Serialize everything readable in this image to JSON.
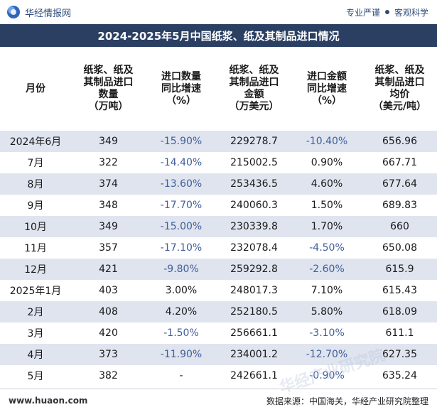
{
  "header": {
    "brand": "华经情报网",
    "slogan_left": "专业严谨",
    "slogan_right": "客观科学"
  },
  "title": "2024-2025年5月中国纸浆、纸及其制品进口情况",
  "table": {
    "columns": [
      "月份",
      "纸浆、纸及\n其制品进口\n数量\n（万吨）",
      "进口数量\n同比增速\n（%）",
      "纸浆、纸及\n其制品进口\n金额\n（万美元）",
      "进口金额\n同比增速\n（%）",
      "纸浆、纸及\n其制品进口\n均价\n（美元/吨）"
    ],
    "rows": [
      [
        "2024年6月",
        "349",
        "-15.90%",
        "229278.7",
        "-10.40%",
        "656.96"
      ],
      [
        "7月",
        "322",
        "-14.40%",
        "215002.5",
        "0.90%",
        "667.71"
      ],
      [
        "8月",
        "374",
        "-13.60%",
        "253436.5",
        "4.60%",
        "677.64"
      ],
      [
        "9月",
        "348",
        "-17.70%",
        "240060.3",
        "1.50%",
        "689.83"
      ],
      [
        "10月",
        "349",
        "-15.00%",
        "230339.8",
        "1.70%",
        "660"
      ],
      [
        "11月",
        "357",
        "-17.10%",
        "232078.4",
        "-4.50%",
        "650.08"
      ],
      [
        "12月",
        "421",
        "-9.80%",
        "259292.8",
        "-2.60%",
        "615.9"
      ],
      [
        "2025年1月",
        "403",
        "3.00%",
        "248017.3",
        "7.10%",
        "615.43"
      ],
      [
        "2月",
        "408",
        "4.20%",
        "252180.5",
        "5.80%",
        "618.09"
      ],
      [
        "3月",
        "420",
        "-1.50%",
        "256661.1",
        "-3.10%",
        "611.1"
      ],
      [
        "4月",
        "373",
        "-11.90%",
        "234001.2",
        "-12.70%",
        "627.35"
      ],
      [
        "5月",
        "382",
        "-",
        "242661.1",
        "-0.90%",
        "635.24"
      ]
    ]
  },
  "footer": {
    "site": "www.huaon.com",
    "source": "数据来源：中国海关，华经产业研究院整理"
  },
  "watermark_text": "华经产业研究院"
}
